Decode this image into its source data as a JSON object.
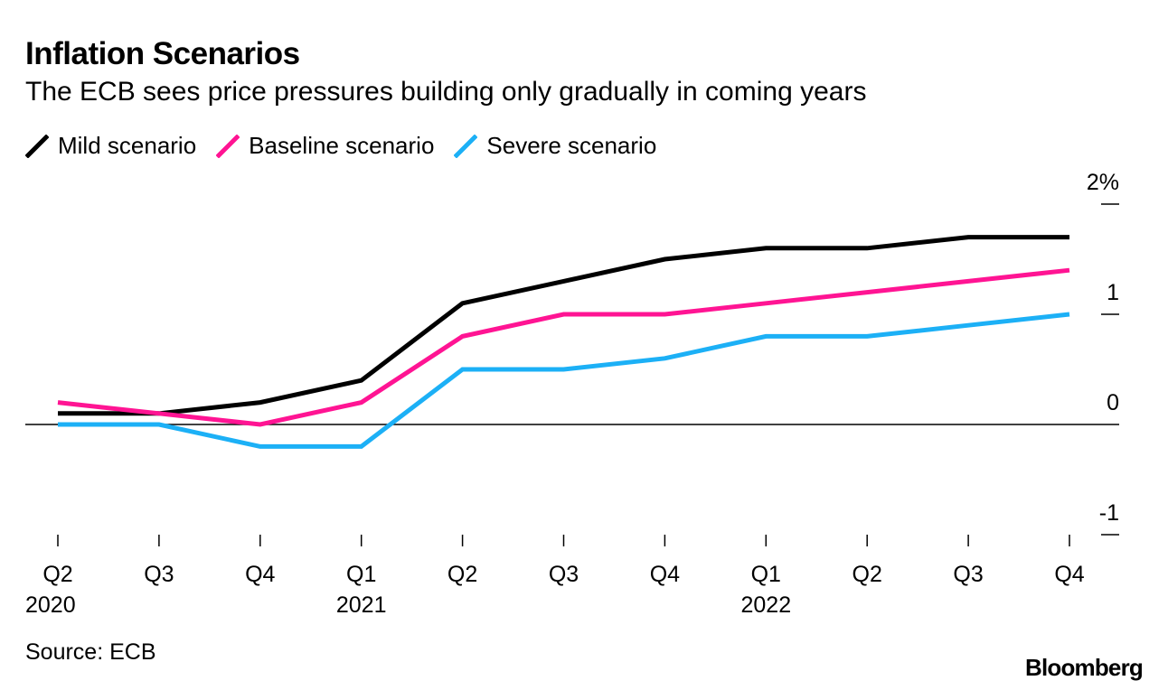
{
  "title": "Inflation Scenarios",
  "subtitle": "The ECB sees price pressures building only gradually in coming years",
  "source": "Source: ECB",
  "brand": "Bloomberg",
  "legend": [
    {
      "name": "Mild scenario",
      "color": "#000000"
    },
    {
      "name": "Baseline scenario",
      "color": "#ff1493"
    },
    {
      "name": "Severe scenario",
      "color": "#1cb0f6"
    }
  ],
  "chart_data": {
    "type": "line",
    "title": "Inflation Scenarios",
    "subtitle": "The ECB sees price pressures building only gradually in coming years",
    "xlabel": "",
    "ylabel": "",
    "categories": [
      "Q2",
      "Q3",
      "Q4",
      "Q1",
      "Q2",
      "Q3",
      "Q4",
      "Q1",
      "Q2",
      "Q3",
      "Q4"
    ],
    "year_labels": [
      {
        "index": 0,
        "label": "2020"
      },
      {
        "index": 3,
        "label": "2021"
      },
      {
        "index": 7,
        "label": "2022"
      }
    ],
    "y_ticks": [
      {
        "value": 2,
        "label": "2%"
      },
      {
        "value": 1,
        "label": "1"
      },
      {
        "value": 0,
        "label": "0"
      },
      {
        "value": -1,
        "label": "-1"
      }
    ],
    "ylim": [
      -1,
      2
    ],
    "zero_line": true,
    "series": [
      {
        "name": "Mild scenario",
        "color": "#000000",
        "values": [
          0.1,
          0.1,
          0.2,
          0.4,
          1.1,
          1.3,
          1.5,
          1.6,
          1.6,
          1.7,
          1.7
        ]
      },
      {
        "name": "Baseline scenario",
        "color": "#ff1493",
        "values": [
          0.2,
          0.1,
          0.0,
          0.2,
          0.8,
          1.0,
          1.0,
          1.1,
          1.2,
          1.3,
          1.4
        ]
      },
      {
        "name": "Severe scenario",
        "color": "#1cb0f6",
        "values": [
          0.0,
          0.0,
          -0.2,
          -0.2,
          0.5,
          0.5,
          0.6,
          0.8,
          0.8,
          0.9,
          1.0
        ]
      }
    ]
  }
}
